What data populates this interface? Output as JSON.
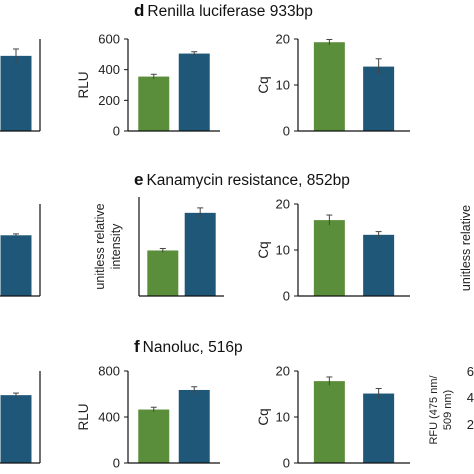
{
  "panels": [
    {
      "letter": "d",
      "title": "Renilla luciferase 933bp"
    },
    {
      "letter": "e",
      "title": "Kanamycin resistance, 852bp"
    },
    {
      "letter": "f",
      "title": "Nanoluc, 516p"
    }
  ],
  "colors": {
    "green": "#5b8e3a",
    "blue": "#1f5779",
    "axis": "#111111",
    "error": "#444444"
  },
  "chart_data": [
    {
      "id": "d-left",
      "panel": "d",
      "type": "bar",
      "ylabel": "RLU",
      "ylim": [
        0,
        600
      ],
      "ticks": [
        "0",
        "200",
        "400",
        "600"
      ],
      "tickValues": [
        0,
        200,
        400,
        600
      ],
      "values": [
        355,
        505
      ],
      "errors": [
        15,
        12
      ]
    },
    {
      "id": "d-right",
      "panel": "d",
      "type": "bar",
      "ylabel": "Cq",
      "ylim": [
        0,
        20
      ],
      "ticks": [
        "0",
        "10",
        "20"
      ],
      "tickValues": [
        0,
        10,
        20
      ],
      "values": [
        19.3,
        14.0
      ],
      "errors": [
        0.6,
        1.7
      ]
    },
    {
      "id": "e-left",
      "panel": "e",
      "type": "bar",
      "ylabel": "unitless relative intensity",
      "ylim": [
        0,
        1
      ],
      "ticks": [],
      "tickValues": [],
      "values": [
        0.46,
        0.84
      ],
      "errors": [
        0.02,
        0.05
      ]
    },
    {
      "id": "e-right",
      "panel": "e",
      "type": "bar",
      "ylabel": "Cq",
      "ylim": [
        0,
        20
      ],
      "ticks": [
        "0",
        "10",
        "20"
      ],
      "tickValues": [
        0,
        10,
        20
      ],
      "values": [
        16.5,
        13.3
      ],
      "errors": [
        1.1,
        0.7
      ]
    },
    {
      "id": "f-left",
      "panel": "f",
      "type": "bar",
      "ylabel": "RLU",
      "ylim": [
        0,
        800
      ],
      "ticks": [
        "0",
        "400",
        "800"
      ],
      "tickValues": [
        0,
        400,
        800
      ],
      "values": [
        465,
        635
      ],
      "errors": [
        20,
        28
      ]
    },
    {
      "id": "f-right",
      "panel": "f",
      "type": "bar",
      "ylabel": "Cq",
      "ylim": [
        0,
        20
      ],
      "ticks": [
        "0",
        "10",
        "20"
      ],
      "tickValues": [
        0,
        10,
        20
      ],
      "values": [
        17.8,
        15.1
      ],
      "errors": [
        0.9,
        1.1
      ]
    }
  ],
  "partial": {
    "left": [
      {
        "values": [
          490
        ],
        "errors": [
          45
        ],
        "ylim": [
          0,
          600
        ]
      },
      {
        "values": [
          0.66
        ],
        "errors": [
          0.015
        ],
        "ylim": [
          0,
          1
        ]
      },
      {
        "values": [
          590
        ],
        "errors": [
          18
        ],
        "ylim": [
          0,
          800
        ]
      }
    ],
    "right_labels": [
      "unitless relative",
      "RFU (475 nm/",
      "509 nm)"
    ],
    "right_ticks": [
      "6",
      "4",
      "2"
    ]
  }
}
